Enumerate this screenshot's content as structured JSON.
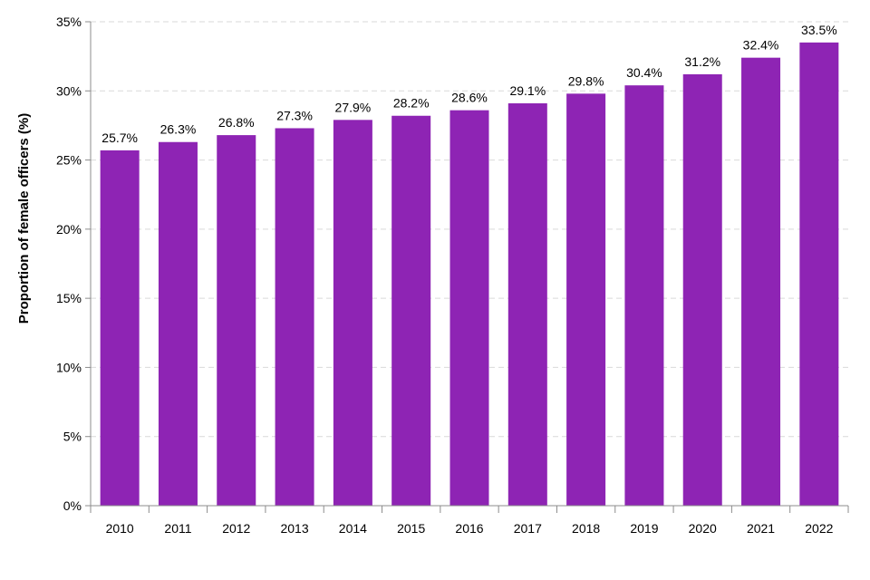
{
  "chart_data": {
    "type": "bar",
    "title": "",
    "xlabel": "",
    "ylabel": "Proportion of female officers (%)",
    "categories": [
      "2010",
      "2011",
      "2012",
      "2013",
      "2014",
      "2015",
      "2016",
      "2017",
      "2018",
      "2019",
      "2020",
      "2021",
      "2022"
    ],
    "values": [
      25.7,
      26.3,
      26.8,
      27.3,
      27.9,
      28.2,
      28.6,
      29.1,
      29.8,
      30.4,
      31.2,
      32.4,
      33.5
    ],
    "value_labels": [
      "25.7%",
      "26.3%",
      "26.8%",
      "27.3%",
      "27.9%",
      "28.2%",
      "28.6%",
      "29.1%",
      "29.8%",
      "30.4%",
      "31.2%",
      "32.4%",
      "33.5%"
    ],
    "ylim": [
      0,
      35
    ],
    "y_ticks": [
      0,
      5,
      10,
      15,
      20,
      25,
      30,
      35
    ],
    "y_tick_labels": [
      "0%",
      "5%",
      "10%",
      "15%",
      "20%",
      "25%",
      "30%",
      "35%"
    ],
    "grid": true,
    "legend": "none",
    "bar_color": "#8e24b4"
  }
}
